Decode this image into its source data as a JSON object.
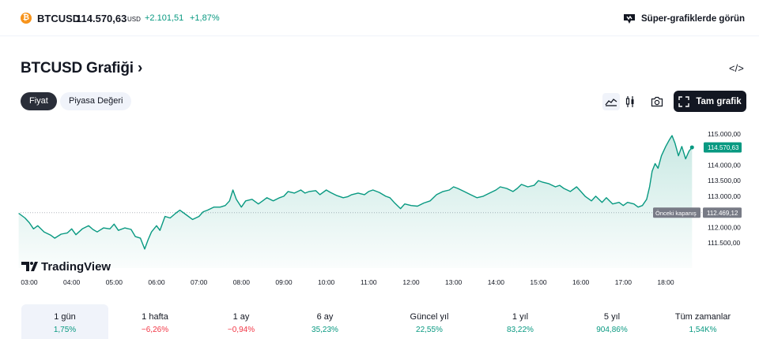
{
  "header": {
    "symbol": "BTCUSD",
    "price": "114.570,63",
    "currency": "USD",
    "change": "+2.101,51",
    "change_pct": "+1,87%",
    "super_charts": "Süper-grafiklerde görün"
  },
  "title": "BTCUSD Grafiği",
  "title_arrow": "›",
  "embed_glyph": "</>",
  "tabs": [
    {
      "label": "Fiyat",
      "active": true
    },
    {
      "label": "Piyasa Değeri",
      "active": false
    }
  ],
  "fullscreen_label": "Tam grafik",
  "icons": [
    "area-chart-icon",
    "candles-icon",
    "camera-icon",
    "fullscreen-icon",
    "tradingview-logo-icon",
    "bitcoin-icon",
    "code-icon"
  ],
  "brand": "TradingView",
  "colors": {
    "accent": "#089981",
    "negative": "#f23645",
    "dark": "#131722"
  },
  "chart_data": {
    "type": "area",
    "x_labels": [
      "03:00",
      "04:00",
      "05:00",
      "06:00",
      "07:00",
      "08:00",
      "09:00",
      "10:00",
      "11:00",
      "12:00",
      "13:00",
      "14:00",
      "15:00",
      "16:00",
      "17:00",
      "18:00"
    ],
    "y_ticks": [
      "115.000,00",
      "114.000,00",
      "113.500,00",
      "113.000,00",
      "112.000,00",
      "111.500,00"
    ],
    "ylim": [
      111500,
      115000
    ],
    "last_price_label": "114.570,63",
    "prev_close_label": "Önceki kapanış",
    "prev_close_value": "112.469,12",
    "prev_close": 112469.12,
    "series": [
      {
        "t": 2.75,
        "v": 112450
      },
      {
        "t": 2.9,
        "v": 112300
      },
      {
        "t": 3.0,
        "v": 112150
      },
      {
        "t": 3.1,
        "v": 111950
      },
      {
        "t": 3.2,
        "v": 112050
      },
      {
        "t": 3.35,
        "v": 111850
      },
      {
        "t": 3.5,
        "v": 111750
      },
      {
        "t": 3.6,
        "v": 111650
      },
      {
        "t": 3.75,
        "v": 111780
      },
      {
        "t": 3.9,
        "v": 111820
      },
      {
        "t": 4.0,
        "v": 111950
      },
      {
        "t": 4.1,
        "v": 111760
      },
      {
        "t": 4.25,
        "v": 111950
      },
      {
        "t": 4.4,
        "v": 112050
      },
      {
        "t": 4.5,
        "v": 111930
      },
      {
        "t": 4.6,
        "v": 111850
      },
      {
        "t": 4.75,
        "v": 111980
      },
      {
        "t": 4.9,
        "v": 111950
      },
      {
        "t": 5.0,
        "v": 112100
      },
      {
        "t": 5.1,
        "v": 111900
      },
      {
        "t": 5.25,
        "v": 111980
      },
      {
        "t": 5.4,
        "v": 111930
      },
      {
        "t": 5.5,
        "v": 111700
      },
      {
        "t": 5.62,
        "v": 111650
      },
      {
        "t": 5.72,
        "v": 111300
      },
      {
        "t": 5.8,
        "v": 111600
      },
      {
        "t": 5.88,
        "v": 111850
      },
      {
        "t": 6.0,
        "v": 112050
      },
      {
        "t": 6.08,
        "v": 111900
      },
      {
        "t": 6.2,
        "v": 112350
      },
      {
        "t": 6.32,
        "v": 112300
      },
      {
        "t": 6.45,
        "v": 112450
      },
      {
        "t": 6.55,
        "v": 112550
      },
      {
        "t": 6.7,
        "v": 112400
      },
      {
        "t": 6.85,
        "v": 112250
      },
      {
        "t": 7.0,
        "v": 112350
      },
      {
        "t": 7.1,
        "v": 112500
      },
      {
        "t": 7.2,
        "v": 112550
      },
      {
        "t": 7.35,
        "v": 112650
      },
      {
        "t": 7.5,
        "v": 112650
      },
      {
        "t": 7.62,
        "v": 112700
      },
      {
        "t": 7.72,
        "v": 112850
      },
      {
        "t": 7.8,
        "v": 113200
      },
      {
        "t": 7.88,
        "v": 112900
      },
      {
        "t": 8.0,
        "v": 112650
      },
      {
        "t": 8.1,
        "v": 112850
      },
      {
        "t": 8.25,
        "v": 112900
      },
      {
        "t": 8.4,
        "v": 112750
      },
      {
        "t": 8.5,
        "v": 112850
      },
      {
        "t": 8.6,
        "v": 112950
      },
      {
        "t": 8.75,
        "v": 112850
      },
      {
        "t": 8.9,
        "v": 112950
      },
      {
        "t": 9.0,
        "v": 113000
      },
      {
        "t": 9.1,
        "v": 113150
      },
      {
        "t": 9.25,
        "v": 113100
      },
      {
        "t": 9.4,
        "v": 113200
      },
      {
        "t": 9.5,
        "v": 113100
      },
      {
        "t": 9.6,
        "v": 113150
      },
      {
        "t": 9.75,
        "v": 113180
      },
      {
        "t": 9.85,
        "v": 113050
      },
      {
        "t": 10.0,
        "v": 113200
      },
      {
        "t": 10.1,
        "v": 113120
      },
      {
        "t": 10.25,
        "v": 113020
      },
      {
        "t": 10.4,
        "v": 112950
      },
      {
        "t": 10.5,
        "v": 112980
      },
      {
        "t": 10.6,
        "v": 113050
      },
      {
        "t": 10.75,
        "v": 113100
      },
      {
        "t": 10.9,
        "v": 113050
      },
      {
        "t": 11.0,
        "v": 113150
      },
      {
        "t": 11.1,
        "v": 113200
      },
      {
        "t": 11.25,
        "v": 113120
      },
      {
        "t": 11.4,
        "v": 113000
      },
      {
        "t": 11.5,
        "v": 112950
      },
      {
        "t": 11.6,
        "v": 112800
      },
      {
        "t": 11.75,
        "v": 112600
      },
      {
        "t": 11.85,
        "v": 112750
      },
      {
        "t": 12.0,
        "v": 112700
      },
      {
        "t": 12.15,
        "v": 112680
      },
      {
        "t": 12.3,
        "v": 112780
      },
      {
        "t": 12.45,
        "v": 112850
      },
      {
        "t": 12.6,
        "v": 113050
      },
      {
        "t": 12.75,
        "v": 113150
      },
      {
        "t": 12.9,
        "v": 113200
      },
      {
        "t": 13.0,
        "v": 113300
      },
      {
        "t": 13.1,
        "v": 113250
      },
      {
        "t": 13.25,
        "v": 113150
      },
      {
        "t": 13.4,
        "v": 113050
      },
      {
        "t": 13.55,
        "v": 112950
      },
      {
        "t": 13.7,
        "v": 113000
      },
      {
        "t": 13.85,
        "v": 113100
      },
      {
        "t": 14.0,
        "v": 113200
      },
      {
        "t": 14.1,
        "v": 113300
      },
      {
        "t": 14.25,
        "v": 113250
      },
      {
        "t": 14.4,
        "v": 113150
      },
      {
        "t": 14.5,
        "v": 113250
      },
      {
        "t": 14.6,
        "v": 113380
      },
      {
        "t": 14.75,
        "v": 113300
      },
      {
        "t": 14.9,
        "v": 113350
      },
      {
        "t": 15.0,
        "v": 113500
      },
      {
        "t": 15.1,
        "v": 113450
      },
      {
        "t": 15.25,
        "v": 113400
      },
      {
        "t": 15.4,
        "v": 113300
      },
      {
        "t": 15.5,
        "v": 113350
      },
      {
        "t": 15.6,
        "v": 113250
      },
      {
        "t": 15.75,
        "v": 113150
      },
      {
        "t": 15.9,
        "v": 113300
      },
      {
        "t": 16.0,
        "v": 113150
      },
      {
        "t": 16.1,
        "v": 113000
      },
      {
        "t": 16.25,
        "v": 112850
      },
      {
        "t": 16.35,
        "v": 113000
      },
      {
        "t": 16.5,
        "v": 112800
      },
      {
        "t": 16.6,
        "v": 112950
      },
      {
        "t": 16.75,
        "v": 112750
      },
      {
        "t": 16.9,
        "v": 112800
      },
      {
        "t": 17.0,
        "v": 112700
      },
      {
        "t": 17.1,
        "v": 112800
      },
      {
        "t": 17.25,
        "v": 112750
      },
      {
        "t": 17.35,
        "v": 112650
      },
      {
        "t": 17.45,
        "v": 112700
      },
      {
        "t": 17.55,
        "v": 112900
      },
      {
        "t": 17.62,
        "v": 113300
      },
      {
        "t": 17.68,
        "v": 113800
      },
      {
        "t": 17.75,
        "v": 114050
      },
      {
        "t": 17.82,
        "v": 113900
      },
      {
        "t": 17.9,
        "v": 114300
      },
      {
        "t": 18.0,
        "v": 114600
      },
      {
        "t": 18.08,
        "v": 114800
      },
      {
        "t": 18.15,
        "v": 114950
      },
      {
        "t": 18.22,
        "v": 114700
      },
      {
        "t": 18.3,
        "v": 114300
      },
      {
        "t": 18.38,
        "v": 114600
      },
      {
        "t": 18.47,
        "v": 114200
      },
      {
        "t": 18.55,
        "v": 114450
      },
      {
        "t": 18.62,
        "v": 114570
      }
    ]
  },
  "timeframes": [
    {
      "label": "1 gün",
      "value": "1,75%",
      "sign": "pos",
      "active": true
    },
    {
      "label": "1 hafta",
      "value": "−6,26%",
      "sign": "neg",
      "active": false
    },
    {
      "label": "1 ay",
      "value": "−0,94%",
      "sign": "neg",
      "active": false
    },
    {
      "label": "6 ay",
      "value": "35,23%",
      "sign": "pos",
      "active": false
    },
    {
      "label": "Güncel yıl",
      "value": "22,55%",
      "sign": "pos",
      "active": false
    },
    {
      "label": "1 yıl",
      "value": "83,22%",
      "sign": "pos",
      "active": false
    },
    {
      "label": "5 yıl",
      "value": "904,86%",
      "sign": "pos",
      "active": false
    },
    {
      "label": "Tüm zamanlar",
      "value": "1,54K%",
      "sign": "pos",
      "active": false
    }
  ]
}
